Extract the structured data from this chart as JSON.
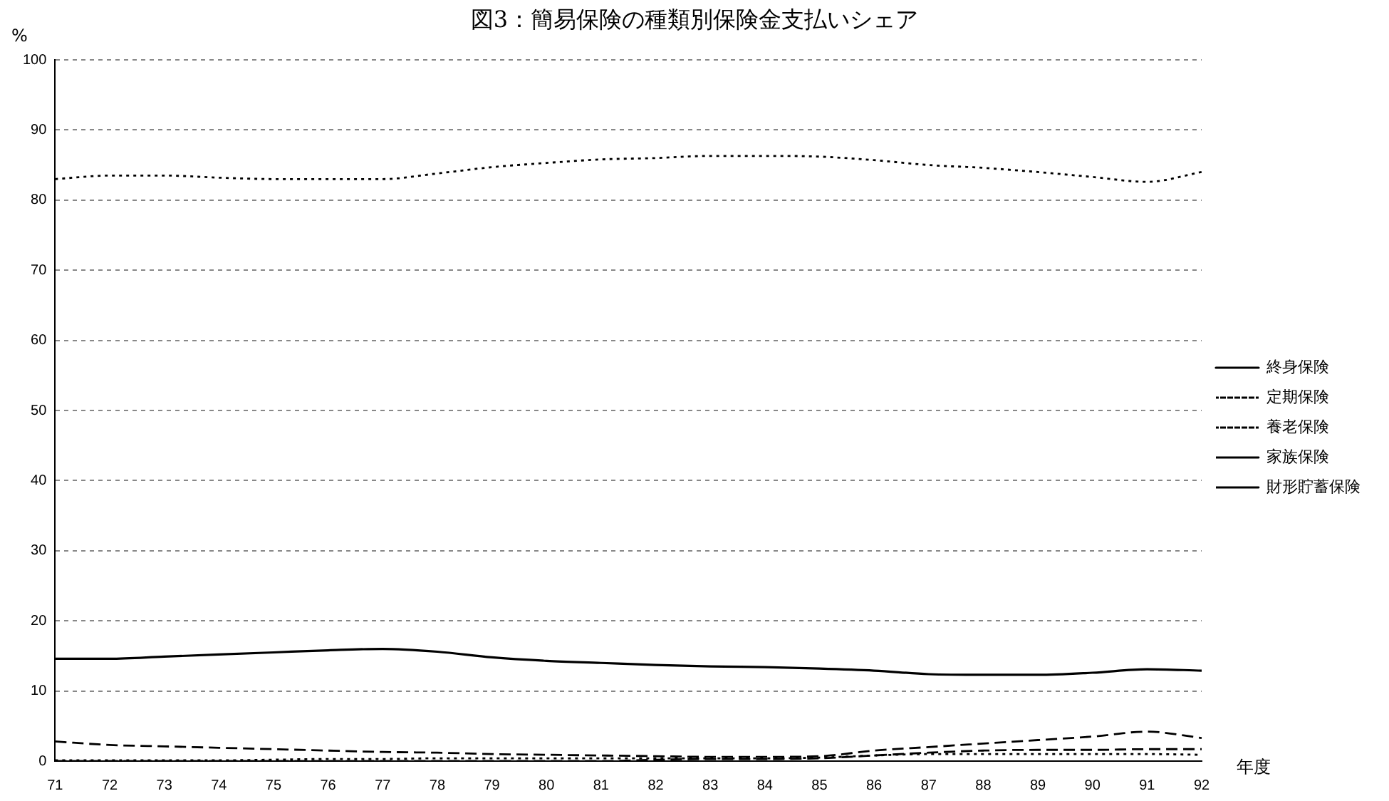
{
  "chart_data": {
    "type": "line",
    "title": "図3：簡易保険の種類別保険金支払いシェア",
    "ylabel": "%",
    "xlabel": "年度",
    "categories": [
      "71",
      "72",
      "73",
      "74",
      "75",
      "76",
      "77",
      "78",
      "79",
      "80",
      "81",
      "82",
      "83",
      "84",
      "85",
      "86",
      "87",
      "88",
      "89",
      "90",
      "91",
      "92"
    ],
    "series": [
      {
        "name": "終身保険",
        "color": "#000000",
        "line_style": "solid",
        "values": [
          14.6,
          14.6,
          14.9,
          15.2,
          15.5,
          15.8,
          16,
          15.6,
          14.8,
          14.3,
          14,
          13.7,
          13.5,
          13.4,
          13.2,
          12.9,
          12.4,
          12.3,
          12.3,
          12.6,
          13.1,
          12.9
        ]
      },
      {
        "name": "定期保険",
        "color": "#000000",
        "line_style": "dotted",
        "values": [
          0.1,
          0.1,
          0.1,
          0.1,
          0.2,
          0.3,
          0.3,
          0.4,
          0.4,
          0.4,
          0.4,
          0.4,
          0.4,
          0.4,
          0.5,
          0.8,
          1,
          1,
          1,
          1,
          1,
          0.9
        ]
      },
      {
        "name": "養老保険",
        "color": "#000000",
        "line_style": "dotted",
        "values": [
          83,
          83.5,
          83.5,
          83.2,
          83,
          83,
          83,
          83.8,
          84.7,
          85.3,
          85.8,
          86,
          86.3,
          86.3,
          86.2,
          85.7,
          85,
          84.6,
          84,
          83.3,
          82.6,
          84
        ]
      },
      {
        "name": "家族保険",
        "color": "#000000",
        "line_style": "dashed",
        "values": [
          2.8,
          2.3,
          2.1,
          1.9,
          1.7,
          1.5,
          1.3,
          1.2,
          1,
          0.9,
          0.8,
          0.7,
          0.6,
          0.6,
          0.7,
          1.5,
          2,
          2.5,
          3,
          3.5,
          4.2,
          3.3
        ]
      },
      {
        "name": "財形貯蓄保険",
        "color": "#000000",
        "line_style": "dashed",
        "values": [
          0,
          0,
          0,
          0,
          0,
          0,
          0,
          0,
          0,
          0,
          0,
          0.2,
          0.3,
          0.3,
          0.4,
          0.8,
          1.2,
          1.5,
          1.6,
          1.6,
          1.7,
          1.7
        ]
      }
    ],
    "ylim": [
      0,
      100
    ],
    "yticks": [
      0,
      10,
      20,
      30,
      40,
      50,
      60,
      70,
      80,
      90,
      100
    ],
    "grid": "y",
    "legend": "right",
    "marker": "none"
  }
}
